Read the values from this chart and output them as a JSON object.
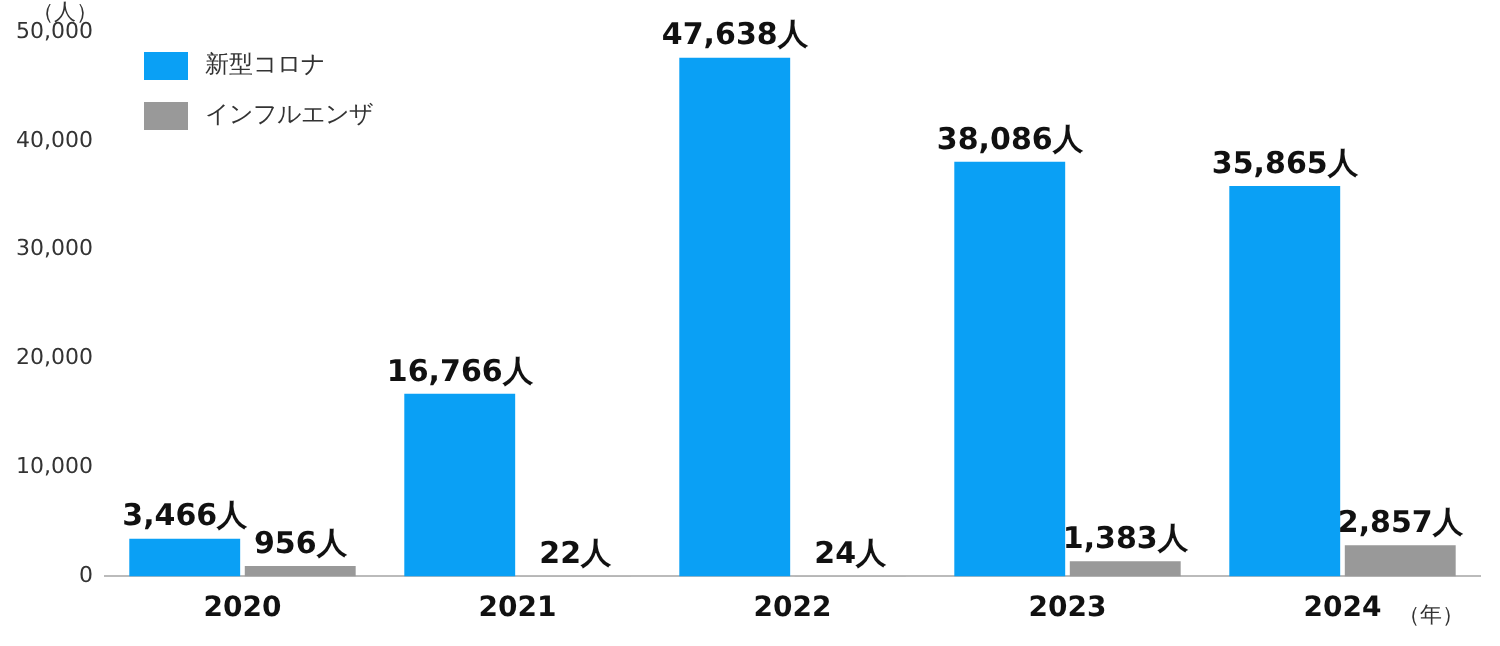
{
  "chart_data": {
    "type": "bar",
    "ylabel": "（人）",
    "xlabel": "（年）",
    "categories": [
      "2020",
      "2021",
      "2022",
      "2023",
      "2024"
    ],
    "series": [
      {
        "name": "新型コロナ",
        "color": "#0aa0f5",
        "values": [
          3466,
          16766,
          47638,
          38086,
          35865
        ],
        "value_labels": [
          "3,466人",
          "16,766人",
          "47,638人",
          "38,086人",
          "35,865人"
        ]
      },
      {
        "name": "インフルエンザ",
        "color": "#999999",
        "values": [
          956,
          22,
          24,
          1383,
          2857
        ],
        "value_labels": [
          "956人",
          "22人",
          "24人",
          "1,383人",
          "2,857人"
        ]
      }
    ],
    "ylim": [
      0,
      50000
    ],
    "yticks": [
      0,
      {
        "value": 10000,
        "label": "10,000"
      },
      {
        "value": 20000,
        "label": "20,000"
      },
      {
        "value": 30000,
        "label": "30,000"
      },
      {
        "value": 40000,
        "label": "40,000"
      },
      {
        "value": 50000,
        "label": "50,000"
      }
    ],
    "legend": "top left",
    "grid": false
  }
}
